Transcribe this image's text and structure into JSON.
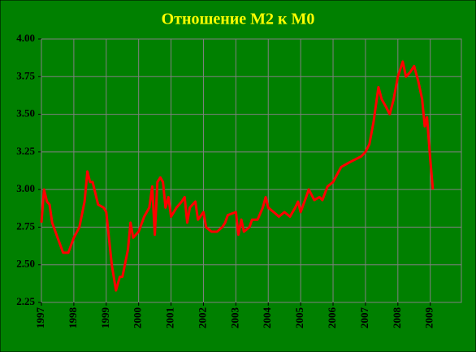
{
  "chart_data": {
    "type": "line",
    "title": "Отношение М2 к М0",
    "x": [
      1997.0,
      1997.08,
      1997.17,
      1997.25,
      1997.33,
      1997.5,
      1997.67,
      1997.83,
      1998.0,
      1998.17,
      1998.33,
      1998.42,
      1998.5,
      1998.58,
      1998.75,
      1998.92,
      1999.0,
      1999.17,
      1999.3,
      1999.42,
      1999.5,
      1999.67,
      1999.75,
      1999.83,
      2000.0,
      2000.17,
      2000.33,
      2000.42,
      2000.5,
      2000.58,
      2000.67,
      2000.75,
      2000.83,
      2000.92,
      2001.0,
      2001.17,
      2001.33,
      2001.42,
      2001.5,
      2001.58,
      2001.75,
      2001.83,
      2002.0,
      2002.08,
      2002.25,
      2002.42,
      2002.58,
      2002.67,
      2002.75,
      2003.0,
      2003.08,
      2003.17,
      2003.25,
      2003.42,
      2003.5,
      2003.67,
      2003.83,
      2003.92,
      2004.0,
      2004.17,
      2004.33,
      2004.5,
      2004.67,
      2004.83,
      2004.92,
      2005.0,
      2005.17,
      2005.25,
      2005.42,
      2005.58,
      2005.67,
      2005.83,
      2006.0,
      2006.25,
      2006.5,
      2006.87,
      2007.0,
      2007.12,
      2007.25,
      2007.4,
      2007.5,
      2007.63,
      2007.75,
      2007.87,
      2008.0,
      2008.15,
      2008.25,
      2008.38,
      2008.5,
      2008.63,
      2008.75,
      2008.83,
      2008.9,
      2009.0,
      2009.08
    ],
    "values": [
      2.78,
      3.0,
      2.92,
      2.9,
      2.78,
      2.68,
      2.58,
      2.58,
      2.68,
      2.75,
      2.92,
      3.12,
      3.05,
      3.05,
      2.9,
      2.88,
      2.85,
      2.5,
      2.33,
      2.42,
      2.42,
      2.6,
      2.78,
      2.68,
      2.72,
      2.82,
      2.88,
      3.02,
      2.7,
      3.05,
      3.08,
      3.05,
      2.88,
      2.95,
      2.82,
      2.88,
      2.92,
      2.95,
      2.78,
      2.88,
      2.92,
      2.8,
      2.85,
      2.75,
      2.72,
      2.72,
      2.75,
      2.78,
      2.83,
      2.85,
      2.7,
      2.8,
      2.72,
      2.75,
      2.8,
      2.8,
      2.88,
      2.95,
      2.88,
      2.85,
      2.82,
      2.85,
      2.82,
      2.88,
      2.92,
      2.85,
      2.95,
      3.0,
      2.93,
      2.95,
      2.93,
      3.02,
      3.05,
      3.15,
      3.18,
      3.22,
      3.25,
      3.3,
      3.45,
      3.68,
      3.6,
      3.55,
      3.5,
      3.6,
      3.75,
      3.85,
      3.75,
      3.78,
      3.82,
      3.72,
      3.6,
      3.42,
      3.48,
      3.2,
      3.0
    ],
    "color": "#ff0000",
    "xlim": [
      1997,
      2009.96
    ],
    "xticks": [
      1997,
      1998,
      1999,
      2000,
      2001,
      2002,
      2003,
      2004,
      2005,
      2006,
      2007,
      2008,
      2009
    ],
    "ylim": [
      2.25,
      4.0
    ],
    "yticks": [
      {
        "value": 2.25,
        "label": "2.25"
      },
      {
        "value": 2.5,
        "label": "2.50"
      },
      {
        "value": 2.75,
        "label": "2.75"
      },
      {
        "value": 3.0,
        "label": "3.00"
      },
      {
        "value": 3.25,
        "label": "3.25"
      },
      {
        "value": 3.5,
        "label": "3.50"
      },
      {
        "value": 3.75,
        "label": "3.75"
      },
      {
        "value": 4.0,
        "label": "4.00"
      }
    ],
    "grid": true
  }
}
